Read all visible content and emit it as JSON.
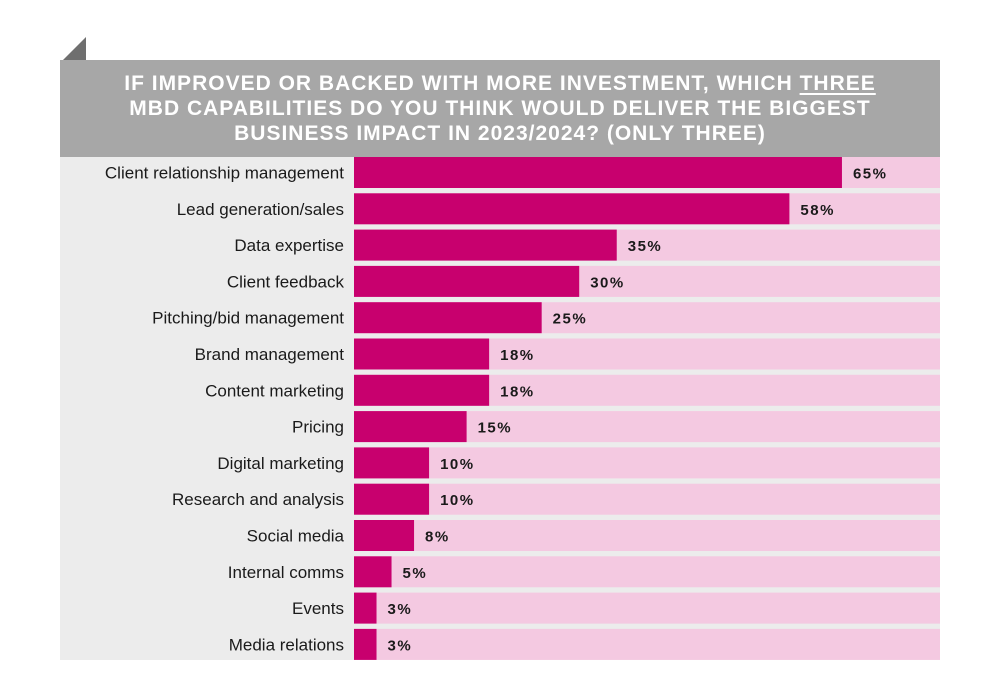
{
  "title_parts": {
    "before": "IF IMPROVED OR BACKED WITH MORE INVESTMENT, WHICH ",
    "highlight": "THREE",
    "after": " MBD CAPABILITIES DO YOU THINK WOULD DELIVER THE BIGGEST BUSINESS IMPACT IN 2023/2024? (ONLY THREE)"
  },
  "colors": {
    "bar": "#c8006e",
    "track": "#f4c9e1",
    "label_area": "#ececec",
    "header": "#a7a7a7",
    "text": "#1a1a1a"
  },
  "chart_data": {
    "type": "bar",
    "orientation": "horizontal",
    "title": "IF IMPROVED OR BACKED WITH MORE INVESTMENT, WHICH THREE MBD CAPABILITIES DO YOU THINK WOULD DELIVER THE BIGGEST BUSINESS IMPACT IN 2023/2024? (ONLY THREE)",
    "xlim": [
      0,
      100
    ],
    "grid": false,
    "categories": [
      "Client relationship management",
      "Lead generation/sales",
      "Data expertise",
      "Client feedback",
      "Pitching/bid management",
      "Brand management",
      "Content marketing",
      "Pricing",
      "Digital marketing",
      "Research and analysis",
      "Social media",
      "Internal comms",
      "Events",
      "Media relations"
    ],
    "values": [
      65,
      58,
      35,
      30,
      25,
      18,
      18,
      15,
      10,
      10,
      8,
      5,
      3,
      3
    ],
    "value_labels": [
      "65%",
      "58%",
      "35%",
      "30%",
      "25%",
      "18%",
      "18%",
      "15%",
      "10%",
      "10%",
      "8%",
      "5%",
      "3%",
      "3%"
    ]
  }
}
